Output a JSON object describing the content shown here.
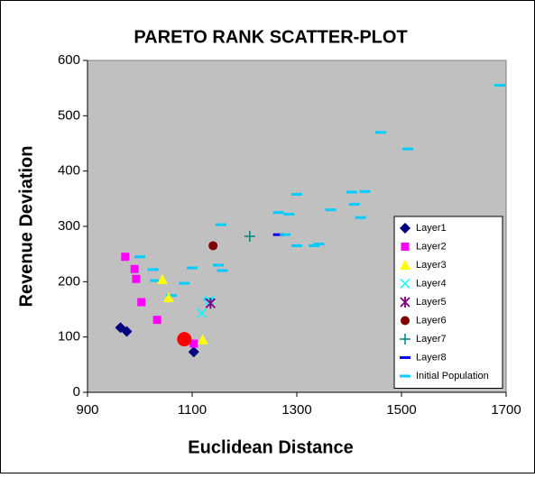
{
  "chart_data": {
    "type": "scatter",
    "title": "PARETO RANK SCATTER-PLOT",
    "x_label": "Euclidean Distance",
    "y_label": "Revenue Deviation",
    "xlim": [
      900,
      1700
    ],
    "xticks": [
      900,
      1100,
      1300,
      1500,
      1700
    ],
    "ylim": [
      0,
      600
    ],
    "yticks": [
      0,
      100,
      200,
      300,
      400,
      500,
      600
    ],
    "legend": "right",
    "series": [
      {
        "name": "Layer1",
        "color": "#000080",
        "marker": "diamond",
        "x": [
          963,
          975,
          1103
        ],
        "values": [
          117,
          110,
          73
        ]
      },
      {
        "name": "Layer2",
        "color": "#ff00ff",
        "marker": "square",
        "x": [
          972,
          990,
          993,
          1003,
          1033,
          1103
        ],
        "values": [
          245,
          223,
          205,
          163,
          131,
          88
        ]
      },
      {
        "name": "Layer3",
        "color": "#ffff00",
        "marker": "triangle",
        "x": [
          1043,
          1055,
          1120
        ],
        "values": [
          204,
          171,
          95
        ]
      },
      {
        "name": "Layer4",
        "color": "#00ffff",
        "marker": "x",
        "x": [
          1118,
          1133
        ],
        "values": [
          143,
          166
        ]
      },
      {
        "name": "Layer5",
        "color": "#800080",
        "marker": "star",
        "x": [
          1135
        ],
        "values": [
          161
        ]
      },
      {
        "name": "Layer6",
        "color": "#800000",
        "marker": "circle",
        "x": [
          1140
        ],
        "values": [
          265
        ]
      },
      {
        "name": "Layer7",
        "color": "#008080",
        "marker": "plus",
        "x": [
          1210
        ],
        "values": [
          282
        ]
      },
      {
        "name": "Layer8",
        "color": "#0000ff",
        "marker": "dash",
        "x": [
          1265
        ],
        "values": [
          285
        ]
      },
      {
        "name": "Initial Population",
        "color": "#00ccff",
        "marker": "dash",
        "x": [
          1000,
          1025,
          1030,
          1060,
          1085,
          1100,
          1132,
          1150,
          1158,
          1155,
          1265,
          1278,
          1285,
          1300,
          1300,
          1333,
          1342,
          1365,
          1405,
          1410,
          1422,
          1430,
          1460,
          1512,
          1688
        ],
        "values": [
          245,
          222,
          202,
          175,
          197,
          225,
          168,
          230,
          220,
          303,
          325,
          285,
          322,
          358,
          265,
          265,
          268,
          330,
          362,
          340,
          316,
          363,
          470,
          440,
          555
        ]
      },
      {
        "color": "#ff0000",
        "marker": "bigcircle",
        "x": [
          1085
        ],
        "values": [
          96
        ]
      }
    ]
  }
}
